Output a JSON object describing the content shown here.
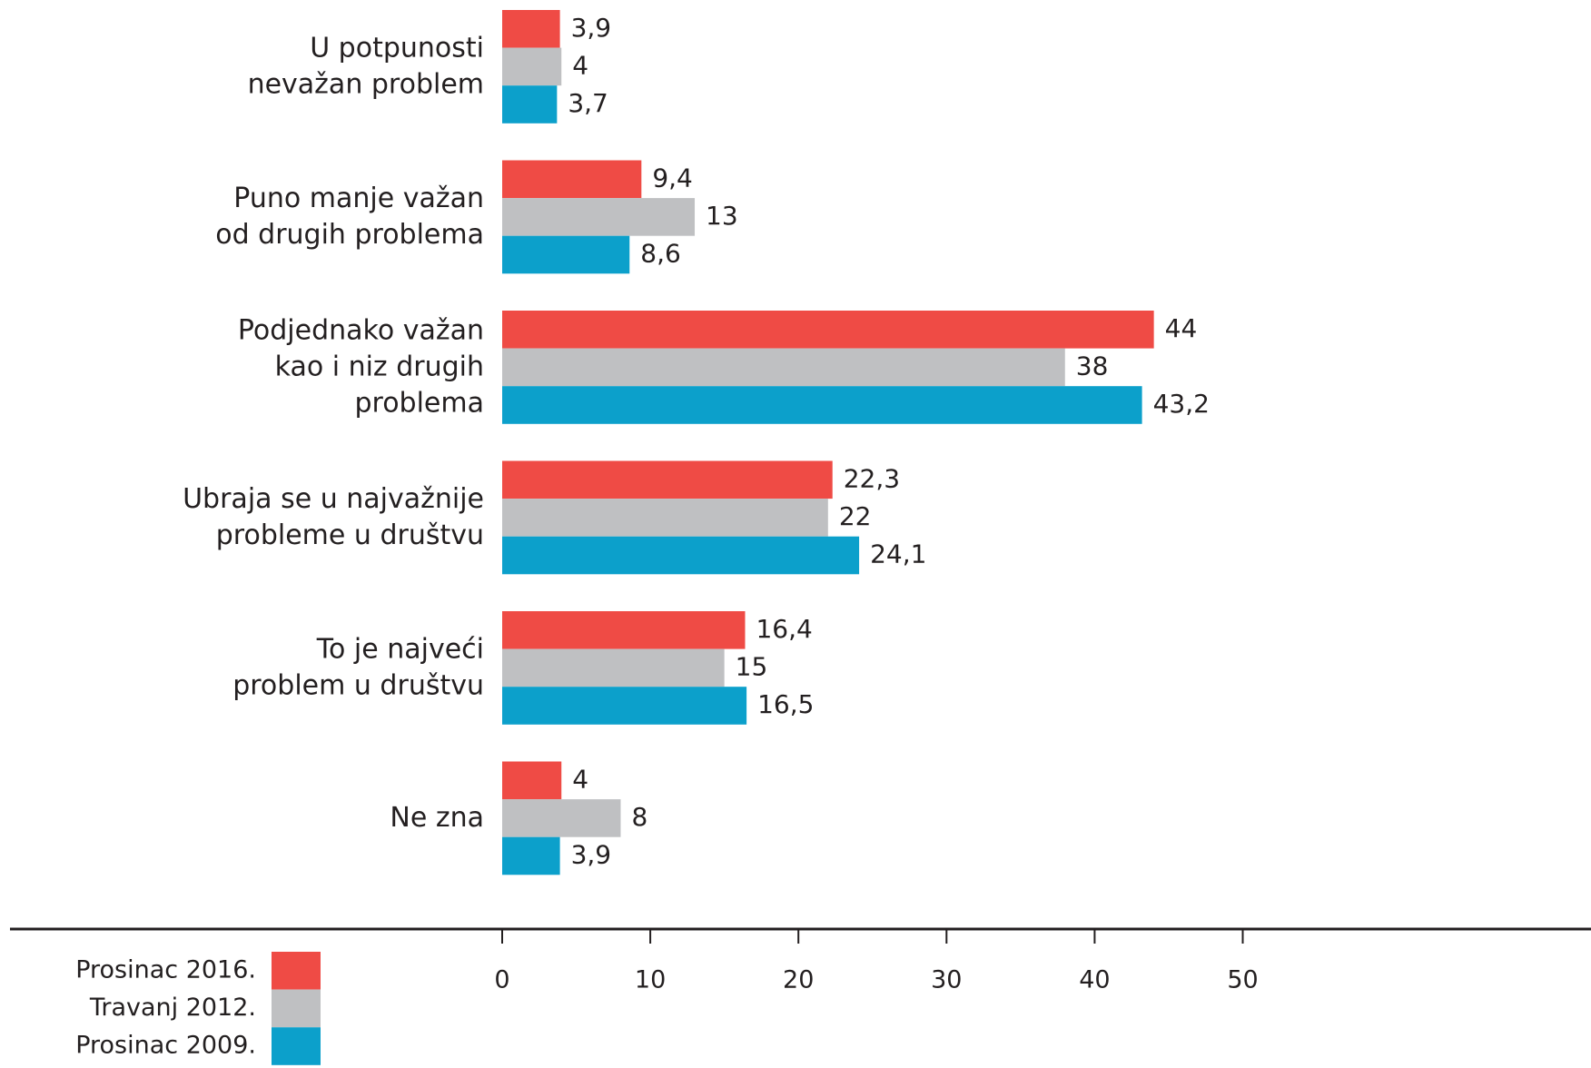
{
  "chart_data": {
    "type": "bar",
    "orientation": "horizontal",
    "categories": [
      "U potpunosti\nnevažan problem",
      "Puno manje važan\nod drugih problema",
      "Podjednako važan\nkao i niz drugih\nproblema",
      "Ubraja se u najvažnije\nprobleme u društvu",
      "To je najveći\nproblem u društvu",
      "Ne zna"
    ],
    "series": [
      {
        "name": "Prosinac 2016.",
        "color": "#ef4b45",
        "values": [
          3.9,
          9.4,
          44,
          22.3,
          16.4,
          4
        ],
        "value_labels": [
          "3,9",
          "9,4",
          "44",
          "22,3",
          "16,4",
          "4"
        ]
      },
      {
        "name": "Travanj 2012.",
        "color": "#bfc0c2",
        "values": [
          4,
          13,
          38,
          22,
          15,
          8
        ],
        "value_labels": [
          "4",
          "13",
          "38",
          "22",
          "15",
          "8"
        ]
      },
      {
        "name": "Prosinac 2009.",
        "color": "#0ca0cb",
        "values": [
          3.7,
          8.6,
          43.2,
          24.1,
          16.5,
          3.9
        ],
        "value_labels": [
          "3,7",
          "8,6",
          "43,2",
          "24,1",
          "16,5",
          "3,9"
        ]
      }
    ],
    "xlim": [
      0,
      50
    ],
    "xticks": [
      0,
      10,
      20,
      30,
      40,
      50
    ],
    "legend": "bottom-left"
  }
}
